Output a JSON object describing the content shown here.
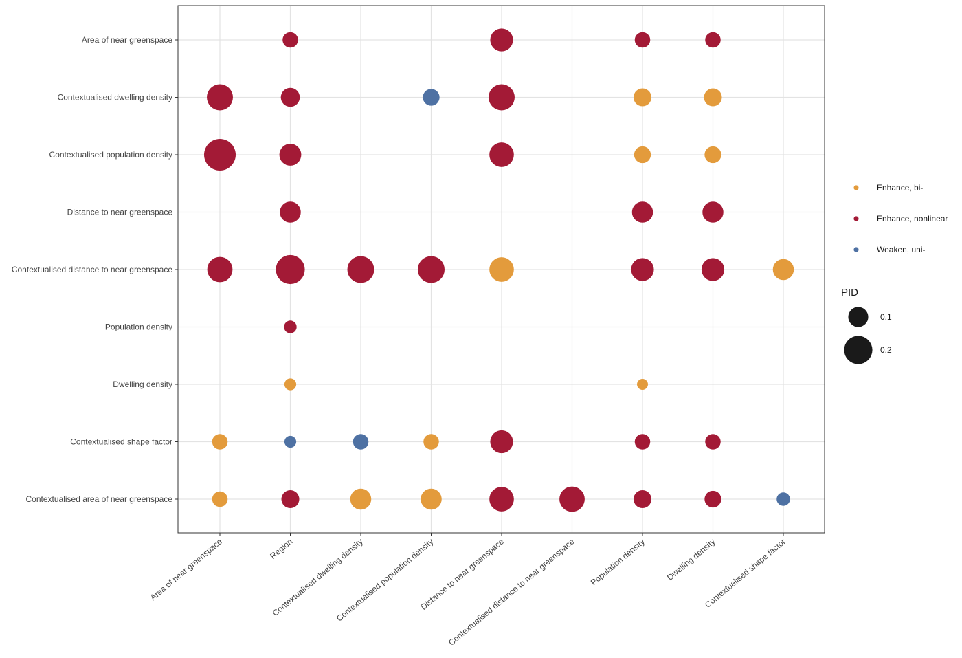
{
  "chart_data": {
    "type": "scatter",
    "title": "",
    "xlabel": "",
    "ylabel": "",
    "x_categories": [
      "Area of near greenspace",
      "Region",
      "Contextualised dwelling density",
      "Contextualised population density",
      "Distance to near greenspace",
      "Contextualised distance to near greenspace",
      "Population density",
      "Dwelling density",
      "Contextualised shape factor"
    ],
    "y_categories": [
      "Area of near greenspace",
      "Contextualised dwelling density",
      "Contextualised population density",
      "Distance to near greenspace",
      "Contextualised distance to near greenspace",
      "Population density",
      "Dwelling density",
      "Contextualised shape factor",
      "Contextualised area of near greenspace"
    ],
    "grid": true,
    "legend_position": "right",
    "color_legend": [
      {
        "label": "Enhance, bi-",
        "color": "#E39B3C"
      },
      {
        "label": "Enhance, nonlinear",
        "color": "#A31A36"
      },
      {
        "label": "Weaken, uni-",
        "color": "#4E71A3"
      }
    ],
    "size_legend": {
      "title": "PID",
      "entries": [
        {
          "label": "0.1",
          "value": 0.1
        },
        {
          "label": "0.2",
          "value": 0.2
        }
      ]
    },
    "points": [
      {
        "x": "Region",
        "y": "Area of near greenspace",
        "type": "Enhance, nonlinear",
        "pid": 0.06
      },
      {
        "x": "Distance to near greenspace",
        "y": "Area of near greenspace",
        "type": "Enhance, nonlinear",
        "pid": 0.13
      },
      {
        "x": "Population density",
        "y": "Area of near greenspace",
        "type": "Enhance, nonlinear",
        "pid": 0.06
      },
      {
        "x": "Dwelling density",
        "y": "Area of near greenspace",
        "type": "Enhance, nonlinear",
        "pid": 0.06
      },
      {
        "x": "Area of near greenspace",
        "y": "Contextualised dwelling density",
        "type": "Enhance, nonlinear",
        "pid": 0.17
      },
      {
        "x": "Region",
        "y": "Contextualised dwelling density",
        "type": "Enhance, nonlinear",
        "pid": 0.09
      },
      {
        "x": "Contextualised population density",
        "y": "Contextualised dwelling density",
        "type": "Weaken, uni-",
        "pid": 0.07
      },
      {
        "x": "Distance to near greenspace",
        "y": "Contextualised dwelling density",
        "type": "Enhance, nonlinear",
        "pid": 0.17
      },
      {
        "x": "Population density",
        "y": "Contextualised dwelling density",
        "type": "Enhance, bi-",
        "pid": 0.08
      },
      {
        "x": "Dwelling density",
        "y": "Contextualised dwelling density",
        "type": "Enhance, bi-",
        "pid": 0.08
      },
      {
        "x": "Area of near greenspace",
        "y": "Contextualised population density",
        "type": "Enhance, nonlinear",
        "pid": 0.25
      },
      {
        "x": "Region",
        "y": "Contextualised population density",
        "type": "Enhance, nonlinear",
        "pid": 0.12
      },
      {
        "x": "Distance to near greenspace",
        "y": "Contextualised population density",
        "type": "Enhance, nonlinear",
        "pid": 0.15
      },
      {
        "x": "Population density",
        "y": "Contextualised population density",
        "type": "Enhance, bi-",
        "pid": 0.07
      },
      {
        "x": "Dwelling density",
        "y": "Contextualised population density",
        "type": "Enhance, bi-",
        "pid": 0.07
      },
      {
        "x": "Region",
        "y": "Distance to near greenspace",
        "type": "Enhance, nonlinear",
        "pid": 0.11
      },
      {
        "x": "Population density",
        "y": "Distance to near greenspace",
        "type": "Enhance, nonlinear",
        "pid": 0.11
      },
      {
        "x": "Dwelling density",
        "y": "Distance to near greenspace",
        "type": "Enhance, nonlinear",
        "pid": 0.11
      },
      {
        "x": "Area of near greenspace",
        "y": "Contextualised distance to near greenspace",
        "type": "Enhance, nonlinear",
        "pid": 0.16
      },
      {
        "x": "Region",
        "y": "Contextualised distance to near greenspace",
        "type": "Enhance, nonlinear",
        "pid": 0.21
      },
      {
        "x": "Contextualised dwelling density",
        "y": "Contextualised distance to near greenspace",
        "type": "Enhance, nonlinear",
        "pid": 0.18
      },
      {
        "x": "Contextualised population density",
        "y": "Contextualised distance to near greenspace",
        "type": "Enhance, nonlinear",
        "pid": 0.18
      },
      {
        "x": "Distance to near greenspace",
        "y": "Contextualised distance to near greenspace",
        "type": "Enhance, bi-",
        "pid": 0.15
      },
      {
        "x": "Population density",
        "y": "Contextualised distance to near greenspace",
        "type": "Enhance, nonlinear",
        "pid": 0.13
      },
      {
        "x": "Dwelling density",
        "y": "Contextualised distance to near greenspace",
        "type": "Enhance, nonlinear",
        "pid": 0.13
      },
      {
        "x": "Contextualised shape factor",
        "y": "Contextualised distance to near greenspace",
        "type": "Enhance, bi-",
        "pid": 0.11
      },
      {
        "x": "Region",
        "y": "Population density",
        "type": "Enhance, nonlinear",
        "pid": 0.04
      },
      {
        "x": "Region",
        "y": "Dwelling density",
        "type": "Enhance, bi-",
        "pid": 0.035
      },
      {
        "x": "Population density",
        "y": "Dwelling density",
        "type": "Enhance, bi-",
        "pid": 0.03
      },
      {
        "x": "Area of near greenspace",
        "y": "Contextualised shape factor",
        "type": "Enhance, bi-",
        "pid": 0.06
      },
      {
        "x": "Region",
        "y": "Contextualised shape factor",
        "type": "Weaken, uni-",
        "pid": 0.035
      },
      {
        "x": "Contextualised dwelling density",
        "y": "Contextualised shape factor",
        "type": "Weaken, uni-",
        "pid": 0.06
      },
      {
        "x": "Contextualised population density",
        "y": "Contextualised shape factor",
        "type": "Enhance, bi-",
        "pid": 0.06
      },
      {
        "x": "Distance to near greenspace",
        "y": "Contextualised shape factor",
        "type": "Enhance, nonlinear",
        "pid": 0.13
      },
      {
        "x": "Population density",
        "y": "Contextualised shape factor",
        "type": "Enhance, nonlinear",
        "pid": 0.06
      },
      {
        "x": "Dwelling density",
        "y": "Contextualised shape factor",
        "type": "Enhance, nonlinear",
        "pid": 0.06
      },
      {
        "x": "Area of near greenspace",
        "y": "Contextualised area of near greenspace",
        "type": "Enhance, bi-",
        "pid": 0.06
      },
      {
        "x": "Region",
        "y": "Contextualised area of near greenspace",
        "type": "Enhance, nonlinear",
        "pid": 0.08
      },
      {
        "x": "Contextualised dwelling density",
        "y": "Contextualised area of near greenspace",
        "type": "Enhance, bi-",
        "pid": 0.11
      },
      {
        "x": "Contextualised population density",
        "y": "Contextualised area of near greenspace",
        "type": "Enhance, bi-",
        "pid": 0.11
      },
      {
        "x": "Distance to near greenspace",
        "y": "Contextualised area of near greenspace",
        "type": "Enhance, nonlinear",
        "pid": 0.15
      },
      {
        "x": "Contextualised distance to near greenspace",
        "y": "Contextualised area of near greenspace",
        "type": "Enhance, nonlinear",
        "pid": 0.16
      },
      {
        "x": "Population density",
        "y": "Contextualised area of near greenspace",
        "type": "Enhance, nonlinear",
        "pid": 0.08
      },
      {
        "x": "Dwelling density",
        "y": "Contextualised area of near greenspace",
        "type": "Enhance, nonlinear",
        "pid": 0.07
      },
      {
        "x": "Contextualised shape factor",
        "y": "Contextualised area of near greenspace",
        "type": "Weaken, uni-",
        "pid": 0.045
      }
    ]
  }
}
